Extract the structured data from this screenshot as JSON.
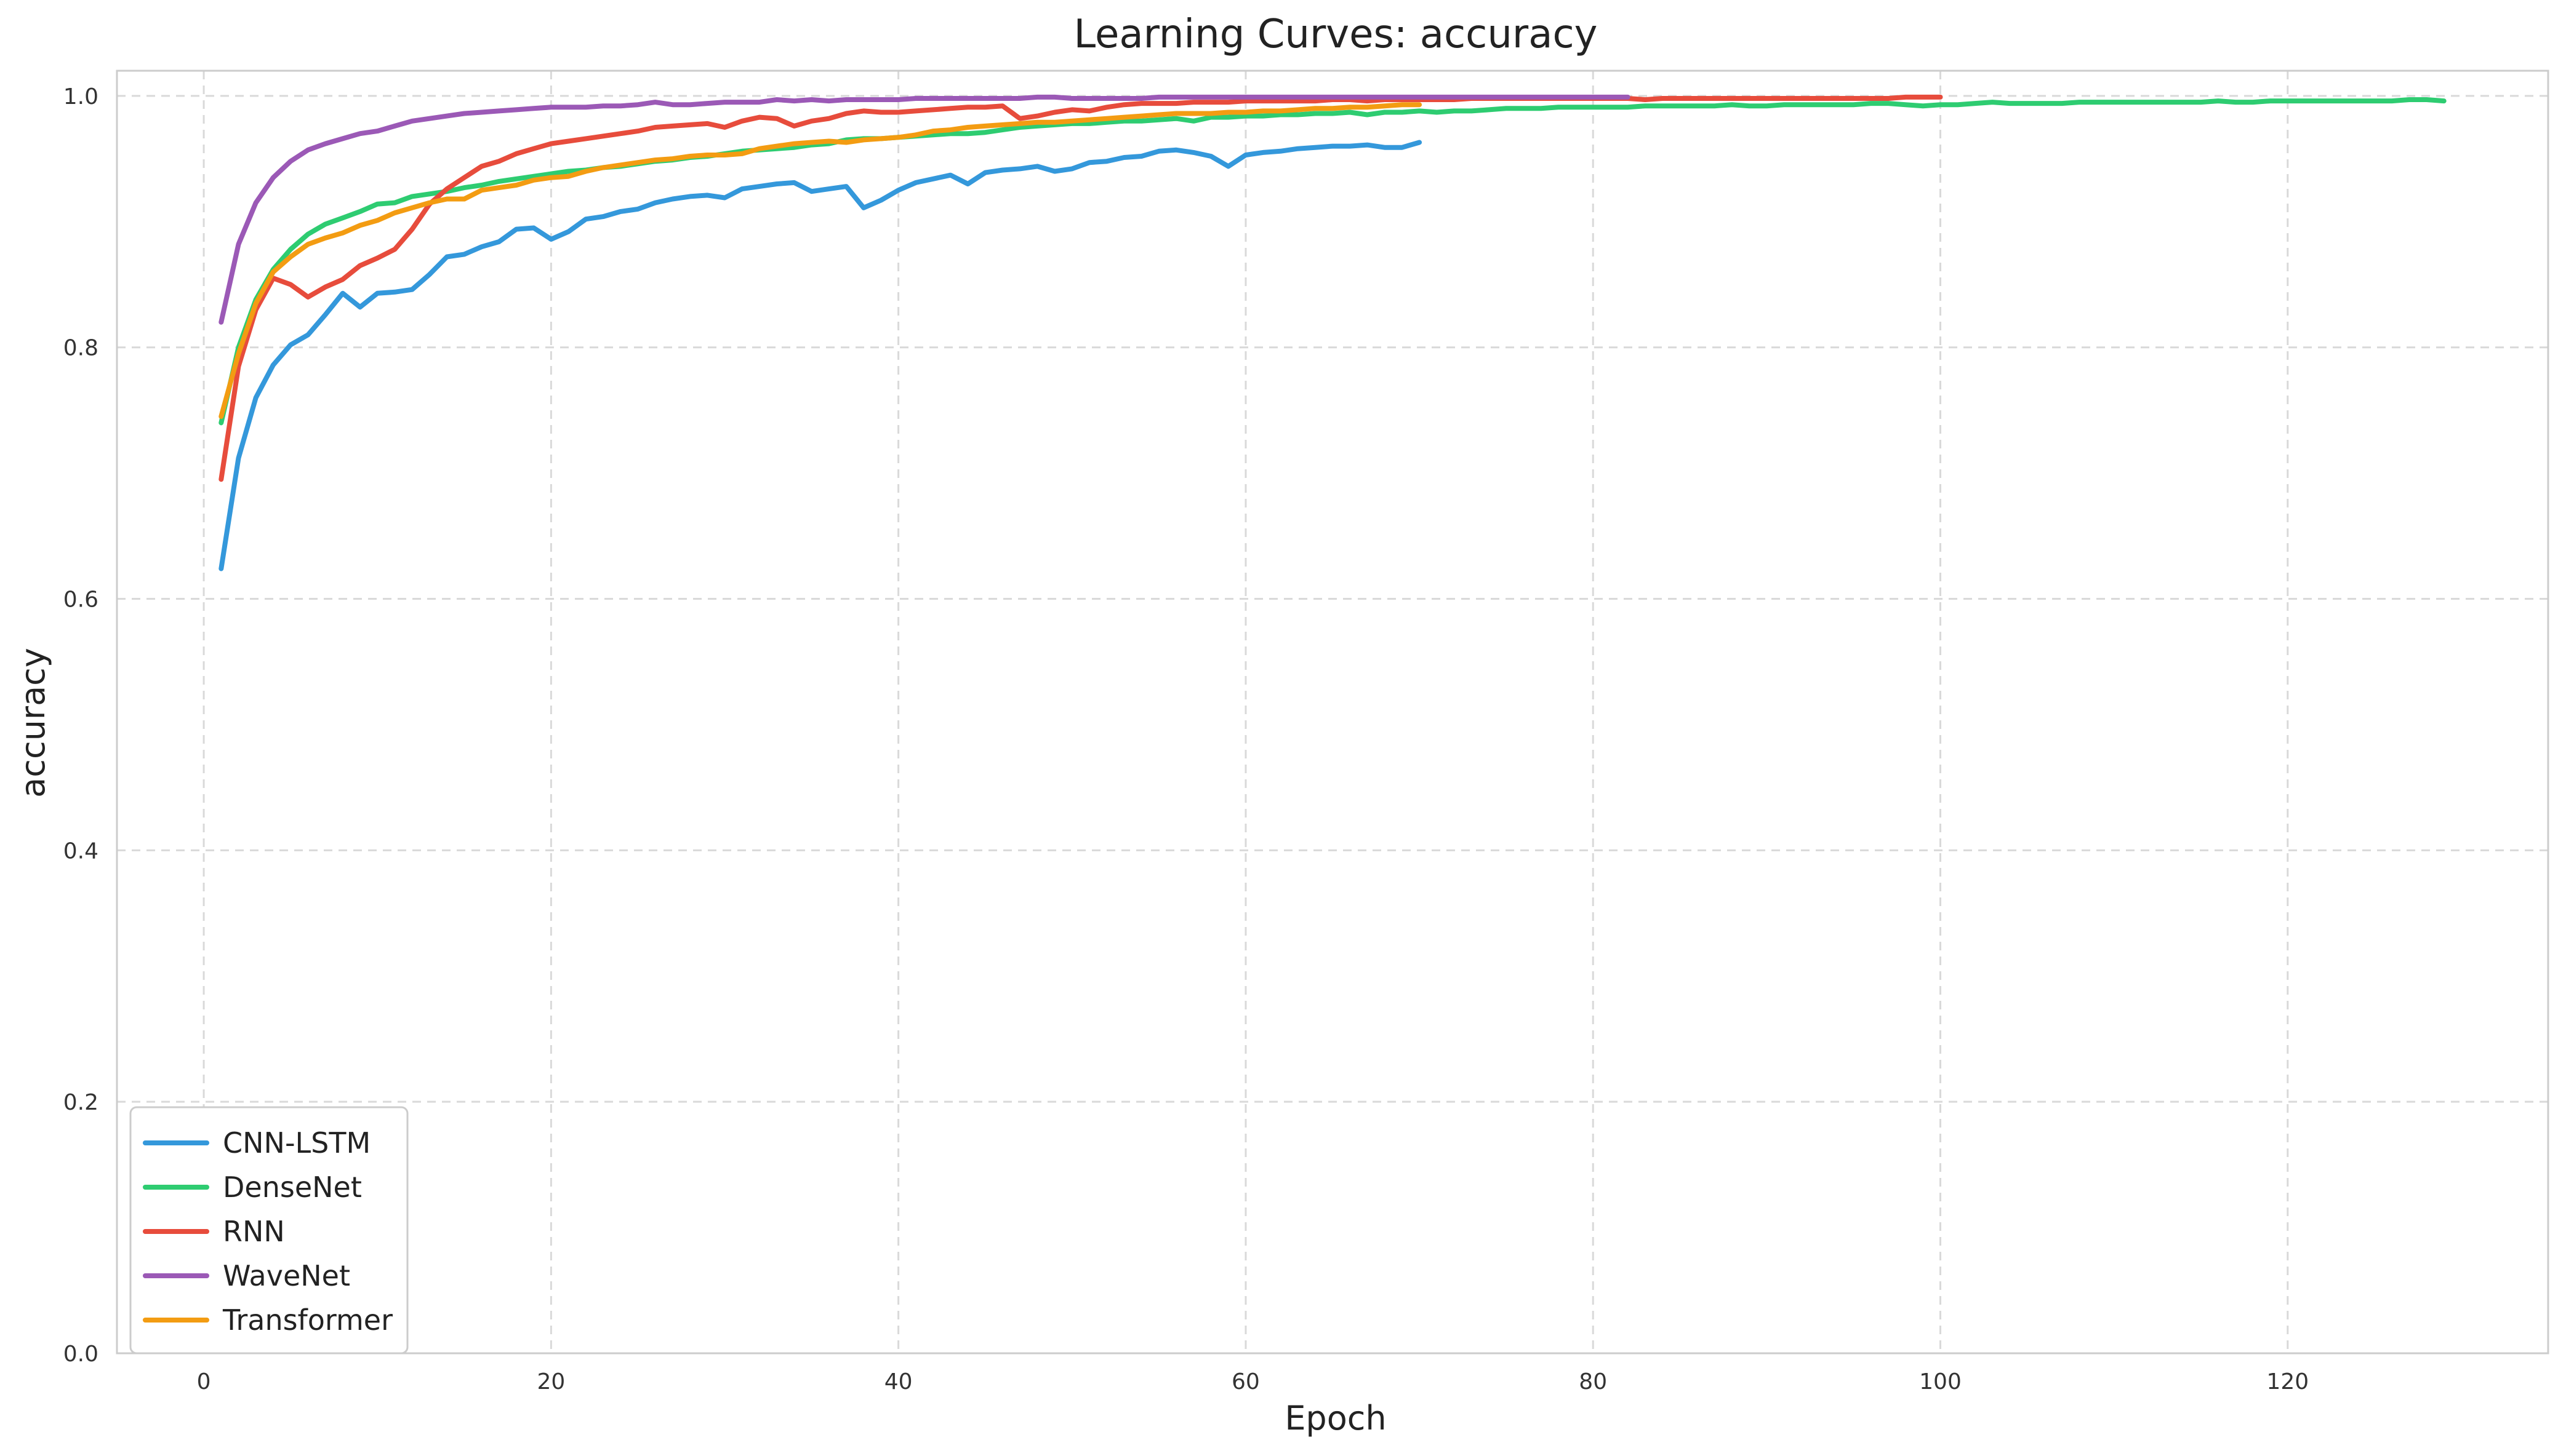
{
  "chart_data": {
    "type": "line",
    "title": "Learning Curves: accuracy",
    "xlabel": "Epoch",
    "ylabel": "accuracy",
    "xlim": [
      -5,
      135
    ],
    "ylim": [
      0.0,
      1.02
    ],
    "xticks": [
      0,
      20,
      40,
      60,
      80,
      100,
      120
    ],
    "yticks": [
      0.0,
      0.2,
      0.4,
      0.6,
      0.8,
      1.0
    ],
    "xtick_labels": [
      "0",
      "20",
      "40",
      "60",
      "80",
      "100",
      "120"
    ],
    "ytick_labels": [
      "0.0",
      "0.2",
      "0.4",
      "0.6",
      "0.8",
      "1.0"
    ],
    "grid": true,
    "legend_position": "bottom-left",
    "series": [
      {
        "name": "CNN-LSTM",
        "color": "#3498db",
        "x": [
          1,
          2,
          3,
          4,
          5,
          6,
          7,
          8,
          9,
          10,
          11,
          12,
          13,
          14,
          15,
          16,
          17,
          18,
          19,
          20,
          21,
          22,
          23,
          24,
          25,
          26,
          27,
          28,
          29,
          30,
          31,
          32,
          33,
          34,
          35,
          36,
          37,
          38,
          39,
          40,
          41,
          42,
          43,
          44,
          45,
          46,
          47,
          48,
          49,
          50,
          51,
          52,
          53,
          54,
          55,
          56,
          57,
          58,
          59,
          60,
          61,
          62,
          63,
          64,
          65,
          66,
          67,
          68,
          69,
          70
        ],
        "y": [
          0.624,
          0.712,
          0.76,
          0.786,
          0.802,
          0.81,
          0.826,
          0.843,
          0.832,
          0.843,
          0.844,
          0.846,
          0.858,
          0.872,
          0.874,
          0.88,
          0.884,
          0.894,
          0.895,
          0.886,
          0.892,
          0.902,
          0.904,
          0.908,
          0.91,
          0.915,
          0.918,
          0.92,
          0.921,
          0.919,
          0.926,
          0.928,
          0.93,
          0.931,
          0.924,
          0.926,
          0.928,
          0.911,
          0.917,
          0.925,
          0.931,
          0.934,
          0.937,
          0.93,
          0.939,
          0.941,
          0.942,
          0.944,
          0.94,
          0.942,
          0.947,
          0.948,
          0.951,
          0.952,
          0.956,
          0.957,
          0.955,
          0.952,
          0.944,
          0.953,
          0.955,
          0.956,
          0.958,
          0.959,
          0.96,
          0.96,
          0.961,
          0.959,
          0.959,
          0.963
        ]
      },
      {
        "name": "DenseNet",
        "color": "#2ecc71",
        "x": [
          1,
          2,
          3,
          4,
          5,
          6,
          7,
          8,
          9,
          10,
          11,
          12,
          13,
          14,
          15,
          16,
          17,
          18,
          19,
          20,
          21,
          22,
          23,
          24,
          25,
          26,
          27,
          28,
          29,
          30,
          31,
          32,
          33,
          34,
          35,
          36,
          37,
          38,
          39,
          40,
          41,
          42,
          43,
          44,
          45,
          46,
          47,
          48,
          49,
          50,
          51,
          52,
          53,
          54,
          55,
          56,
          57,
          58,
          59,
          60,
          61,
          62,
          63,
          64,
          65,
          66,
          67,
          68,
          69,
          70,
          71,
          72,
          73,
          74,
          75,
          76,
          77,
          78,
          79,
          80,
          81,
          82,
          83,
          84,
          85,
          86,
          87,
          88,
          89,
          90,
          91,
          92,
          93,
          94,
          95,
          96,
          97,
          98,
          99,
          100,
          101,
          102,
          103,
          104,
          105,
          106,
          107,
          108,
          109,
          110,
          111,
          112,
          113,
          114,
          115,
          116,
          117,
          118,
          119,
          120,
          121,
          122,
          123,
          124,
          125,
          126,
          127,
          128,
          129
        ],
        "y": [
          0.74,
          0.8,
          0.838,
          0.862,
          0.878,
          0.89,
          0.898,
          0.903,
          0.908,
          0.914,
          0.915,
          0.92,
          0.922,
          0.924,
          0.927,
          0.929,
          0.932,
          0.934,
          0.936,
          0.938,
          0.94,
          0.941,
          0.943,
          0.944,
          0.946,
          0.948,
          0.949,
          0.951,
          0.952,
          0.954,
          0.956,
          0.957,
          0.958,
          0.959,
          0.961,
          0.962,
          0.965,
          0.966,
          0.966,
          0.967,
          0.968,
          0.969,
          0.97,
          0.97,
          0.971,
          0.973,
          0.975,
          0.976,
          0.977,
          0.978,
          0.978,
          0.979,
          0.98,
          0.98,
          0.981,
          0.982,
          0.98,
          0.983,
          0.983,
          0.984,
          0.984,
          0.985,
          0.985,
          0.986,
          0.986,
          0.987,
          0.985,
          0.987,
          0.987,
          0.988,
          0.987,
          0.988,
          0.988,
          0.989,
          0.99,
          0.99,
          0.99,
          0.991,
          0.991,
          0.991,
          0.991,
          0.991,
          0.992,
          0.992,
          0.992,
          0.992,
          0.992,
          0.993,
          0.992,
          0.992,
          0.993,
          0.993,
          0.993,
          0.993,
          0.993,
          0.994,
          0.994,
          0.993,
          0.992,
          0.993,
          0.993,
          0.994,
          0.995,
          0.994,
          0.994,
          0.994,
          0.994,
          0.995,
          0.995,
          0.995,
          0.995,
          0.995,
          0.995,
          0.995,
          0.995,
          0.996,
          0.995,
          0.995,
          0.996,
          0.996,
          0.996,
          0.996,
          0.996,
          0.996,
          0.996,
          0.996,
          0.997,
          0.997,
          0.996
        ]
      },
      {
        "name": "RNN",
        "color": "#e74c3c",
        "x": [
          1,
          2,
          3,
          4,
          5,
          6,
          7,
          8,
          9,
          10,
          11,
          12,
          13,
          14,
          15,
          16,
          17,
          18,
          19,
          20,
          21,
          22,
          23,
          24,
          25,
          26,
          27,
          28,
          29,
          30,
          31,
          32,
          33,
          34,
          35,
          36,
          37,
          38,
          39,
          40,
          41,
          42,
          43,
          44,
          45,
          46,
          47,
          48,
          49,
          50,
          51,
          52,
          53,
          54,
          55,
          56,
          57,
          58,
          59,
          60,
          61,
          62,
          63,
          64,
          65,
          66,
          67,
          68,
          69,
          70,
          71,
          72,
          73,
          74,
          75,
          76,
          77,
          78,
          79,
          80,
          81,
          82,
          83,
          84,
          85,
          86,
          87,
          88,
          89,
          90,
          91,
          92,
          93,
          94,
          95,
          96,
          97,
          98,
          99,
          100
        ],
        "y": [
          0.695,
          0.785,
          0.83,
          0.855,
          0.85,
          0.84,
          0.848,
          0.854,
          0.865,
          0.871,
          0.878,
          0.894,
          0.914,
          0.926,
          0.935,
          0.944,
          0.948,
          0.954,
          0.958,
          0.962,
          0.964,
          0.966,
          0.968,
          0.97,
          0.972,
          0.975,
          0.976,
          0.977,
          0.978,
          0.975,
          0.98,
          0.983,
          0.982,
          0.976,
          0.98,
          0.982,
          0.986,
          0.988,
          0.987,
          0.987,
          0.988,
          0.989,
          0.99,
          0.991,
          0.991,
          0.992,
          0.982,
          0.984,
          0.987,
          0.989,
          0.988,
          0.991,
          0.993,
          0.994,
          0.994,
          0.994,
          0.995,
          0.995,
          0.995,
          0.996,
          0.996,
          0.996,
          0.996,
          0.996,
          0.997,
          0.997,
          0.996,
          0.997,
          0.997,
          0.997,
          0.997,
          0.997,
          0.998,
          0.998,
          0.998,
          0.998,
          0.998,
          0.998,
          0.998,
          0.998,
          0.998,
          0.998,
          0.997,
          0.998,
          0.998,
          0.998,
          0.998,
          0.998,
          0.998,
          0.998,
          0.998,
          0.998,
          0.998,
          0.998,
          0.998,
          0.998,
          0.998,
          0.999,
          0.999,
          0.999
        ]
      },
      {
        "name": "WaveNet",
        "color": "#9b59b6",
        "x": [
          1,
          2,
          3,
          4,
          5,
          6,
          7,
          8,
          9,
          10,
          11,
          12,
          13,
          14,
          15,
          16,
          17,
          18,
          19,
          20,
          21,
          22,
          23,
          24,
          25,
          26,
          27,
          28,
          29,
          30,
          31,
          32,
          33,
          34,
          35,
          36,
          37,
          38,
          39,
          40,
          41,
          42,
          43,
          44,
          45,
          46,
          47,
          48,
          49,
          50,
          51,
          52,
          53,
          54,
          55,
          56,
          57,
          58,
          59,
          60,
          61,
          62,
          63,
          64,
          65,
          66,
          67,
          68,
          69,
          70,
          71,
          72,
          73,
          74,
          75,
          76,
          77,
          78,
          79,
          80,
          81,
          82
        ],
        "y": [
          0.82,
          0.882,
          0.915,
          0.935,
          0.948,
          0.957,
          0.962,
          0.966,
          0.97,
          0.972,
          0.976,
          0.98,
          0.982,
          0.984,
          0.986,
          0.987,
          0.988,
          0.989,
          0.99,
          0.991,
          0.991,
          0.991,
          0.992,
          0.992,
          0.993,
          0.995,
          0.993,
          0.993,
          0.994,
          0.995,
          0.995,
          0.995,
          0.997,
          0.996,
          0.997,
          0.996,
          0.997,
          0.997,
          0.997,
          0.997,
          0.998,
          0.998,
          0.998,
          0.998,
          0.998,
          0.998,
          0.998,
          0.999,
          0.999,
          0.998,
          0.998,
          0.998,
          0.998,
          0.998,
          0.999,
          0.999,
          0.999,
          0.999,
          0.999,
          0.999,
          0.999,
          0.999,
          0.999,
          0.999,
          0.999,
          0.999,
          0.999,
          0.999,
          0.999,
          0.999,
          0.999,
          0.999,
          0.999,
          0.999,
          0.999,
          0.999,
          0.999,
          0.999,
          0.999,
          0.999,
          0.999,
          0.999
        ]
      },
      {
        "name": "Transformer",
        "color": "#f39c12",
        "x": [
          1,
          2,
          3,
          4,
          5,
          6,
          7,
          8,
          9,
          10,
          11,
          12,
          13,
          14,
          15,
          16,
          17,
          18,
          19,
          20,
          21,
          22,
          23,
          24,
          25,
          26,
          27,
          28,
          29,
          30,
          31,
          32,
          33,
          34,
          35,
          36,
          37,
          38,
          39,
          40,
          41,
          42,
          43,
          44,
          45,
          46,
          47,
          48,
          49,
          50,
          51,
          52,
          53,
          54,
          55,
          56,
          57,
          58,
          59,
          60,
          61,
          62,
          63,
          64,
          65,
          66,
          67,
          68,
          69,
          70
        ],
        "y": [
          0.745,
          0.795,
          0.835,
          0.86,
          0.872,
          0.882,
          0.887,
          0.891,
          0.897,
          0.901,
          0.907,
          0.911,
          0.915,
          0.918,
          0.918,
          0.925,
          0.927,
          0.929,
          0.933,
          0.935,
          0.936,
          0.94,
          0.943,
          0.945,
          0.947,
          0.949,
          0.95,
          0.952,
          0.953,
          0.953,
          0.954,
          0.958,
          0.96,
          0.962,
          0.963,
          0.964,
          0.963,
          0.965,
          0.966,
          0.967,
          0.969,
          0.972,
          0.973,
          0.975,
          0.976,
          0.977,
          0.978,
          0.979,
          0.979,
          0.98,
          0.981,
          0.982,
          0.983,
          0.984,
          0.985,
          0.986,
          0.986,
          0.986,
          0.987,
          0.987,
          0.988,
          0.988,
          0.989,
          0.99,
          0.99,
          0.991,
          0.991,
          0.992,
          0.993,
          0.993
        ]
      }
    ]
  }
}
